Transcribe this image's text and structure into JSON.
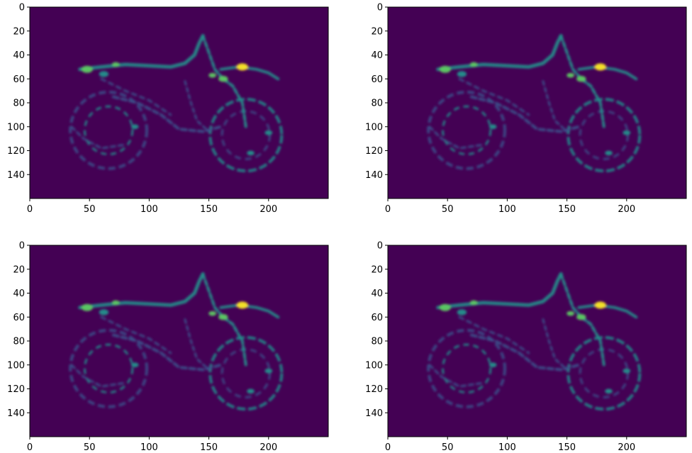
{
  "colors": {
    "background": "#440154",
    "low": "#3b528b",
    "mid": "#21918c",
    "high": "#5ec962",
    "peak": "#fde725"
  },
  "chart_data": [
    {
      "type": "heatmap",
      "title": "",
      "xlabel": "",
      "ylabel": "",
      "xlim": [
        0,
        250
      ],
      "ylim": [
        160,
        0
      ],
      "x_ticks": [
        "0",
        "50",
        "100",
        "150",
        "200"
      ],
      "y_ticks": [
        "0",
        "20",
        "40",
        "60",
        "80",
        "100",
        "120",
        "140"
      ],
      "colormap": "viridis",
      "grid": false,
      "image_shape": [
        160,
        250
      ],
      "content": "motorcycle edge-magnitude image"
    },
    {
      "type": "heatmap",
      "title": "",
      "xlabel": "",
      "ylabel": "",
      "xlim": [
        0,
        250
      ],
      "ylim": [
        160,
        0
      ],
      "x_ticks": [
        "0",
        "50",
        "100",
        "150",
        "200"
      ],
      "y_ticks": [
        "0",
        "20",
        "40",
        "60",
        "80",
        "100",
        "120",
        "140"
      ],
      "colormap": "viridis",
      "grid": false,
      "image_shape": [
        160,
        250
      ],
      "content": "motorcycle edge-magnitude image"
    },
    {
      "type": "heatmap",
      "title": "",
      "xlabel": "",
      "ylabel": "",
      "xlim": [
        0,
        250
      ],
      "ylim": [
        160,
        0
      ],
      "x_ticks": [
        "0",
        "50",
        "100",
        "150",
        "200"
      ],
      "y_ticks": [
        "0",
        "20",
        "40",
        "60",
        "80",
        "100",
        "120",
        "140"
      ],
      "colormap": "viridis",
      "grid": false,
      "image_shape": [
        160,
        250
      ],
      "content": "motorcycle edge-magnitude image"
    },
    {
      "type": "heatmap",
      "title": "",
      "xlabel": "",
      "ylabel": "",
      "xlim": [
        0,
        250
      ],
      "ylim": [
        160,
        0
      ],
      "x_ticks": [
        "0",
        "50",
        "100",
        "150",
        "200"
      ],
      "y_ticks": [
        "0",
        "20",
        "40",
        "60",
        "80",
        "100",
        "120",
        "140"
      ],
      "colormap": "viridis",
      "grid": false,
      "image_shape": [
        160,
        250
      ],
      "content": "motorcycle edge-magnitude image"
    }
  ]
}
